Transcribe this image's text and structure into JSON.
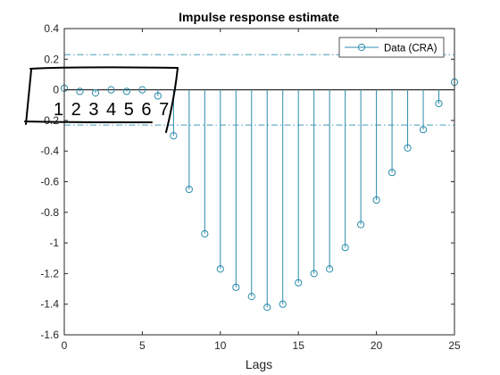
{
  "chart_data": {
    "type": "stem",
    "title": "Impulse response estimate",
    "xlabel": "Lags",
    "ylabel": "",
    "xlim": [
      0,
      25
    ],
    "ylim": [
      -1.6,
      0.4
    ],
    "x_ticks": [
      "0",
      "5",
      "10",
      "15",
      "20",
      "25"
    ],
    "y_ticks": [
      "-1.6",
      "-1.4",
      "-1.2",
      "-1",
      "-0.8",
      "-0.6",
      "-0.4",
      "-0.2",
      "0",
      "0.2",
      "0.4"
    ],
    "grid": false,
    "legend_position": "top-right",
    "series": [
      {
        "name": "Data (CRA)",
        "color": "#2b8cab",
        "x": [
          0,
          1,
          2,
          3,
          4,
          5,
          6,
          7,
          8,
          9,
          10,
          11,
          12,
          13,
          14,
          15,
          16,
          17,
          18,
          19,
          20,
          21,
          22,
          23,
          24,
          25
        ],
        "values": [
          0.01,
          -0.01,
          -0.02,
          0.0,
          -0.01,
          0.0,
          -0.04,
          -0.3,
          -0.65,
          -0.94,
          -1.17,
          -1.29,
          -1.35,
          -1.42,
          -1.4,
          -1.26,
          -1.2,
          -1.17,
          -1.03,
          -0.88,
          -0.72,
          -0.54,
          -0.38,
          -0.26,
          -0.09,
          0.05
        ]
      }
    ],
    "confidence_bounds": [
      0.23,
      -0.23
    ],
    "handwritten_annotation": "1 2 3 4 5 6 7"
  }
}
